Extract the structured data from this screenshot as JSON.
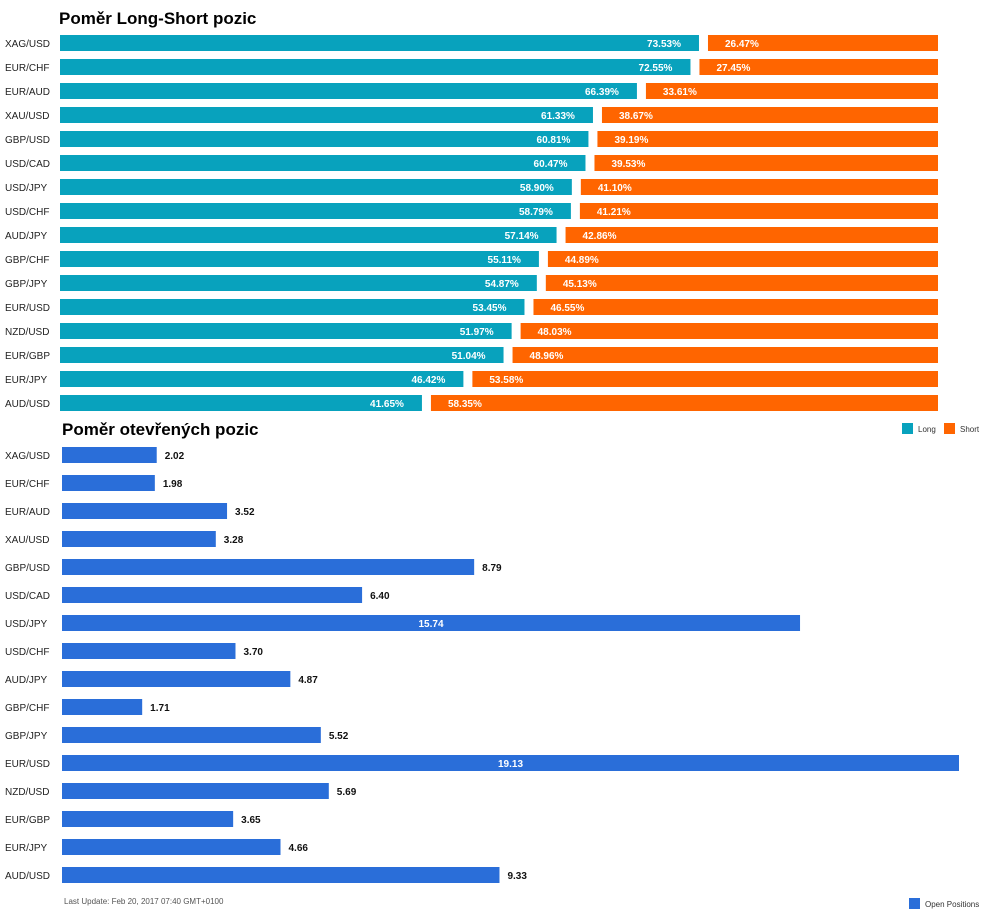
{
  "colors": {
    "long": "#08a2bd",
    "short": "#ff6500",
    "open": "#2a6ed9"
  },
  "footer": "Last Update: Feb 20, 2017 07:40 GMT+0100",
  "chart_data": [
    {
      "type": "bar",
      "orientation": "horizontal",
      "stacked": true,
      "title": "Poměr Long-Short pozic",
      "categories": [
        "XAG/USD",
        "EUR/CHF",
        "EUR/AUD",
        "XAU/USD",
        "GBP/USD",
        "USD/CAD",
        "USD/JPY",
        "USD/CHF",
        "AUD/JPY",
        "GBP/CHF",
        "GBP/JPY",
        "EUR/USD",
        "NZD/USD",
        "EUR/GBP",
        "EUR/JPY",
        "AUD/USD"
      ],
      "series": [
        {
          "name": "Long",
          "values": [
            73.53,
            72.55,
            66.39,
            61.33,
            60.81,
            60.47,
            58.9,
            58.79,
            57.14,
            55.11,
            54.87,
            53.45,
            51.97,
            51.04,
            46.42,
            41.65
          ]
        },
        {
          "name": "Short",
          "values": [
            26.47,
            27.45,
            33.61,
            38.67,
            39.19,
            39.53,
            41.1,
            41.21,
            42.86,
            44.89,
            45.13,
            46.55,
            48.03,
            48.96,
            53.58,
            58.35
          ]
        }
      ],
      "legend": "bottom-right",
      "xlim": [
        0,
        100
      ],
      "value_format": "%"
    },
    {
      "type": "bar",
      "orientation": "horizontal",
      "title": "Poměr otevřených pozic",
      "categories": [
        "XAG/USD",
        "EUR/CHF",
        "EUR/AUD",
        "XAU/USD",
        "GBP/USD",
        "USD/CAD",
        "USD/JPY",
        "USD/CHF",
        "AUD/JPY",
        "GBP/CHF",
        "GBP/JPY",
        "EUR/USD",
        "NZD/USD",
        "EUR/GBP",
        "EUR/JPY",
        "AUD/USD"
      ],
      "series": [
        {
          "name": "Open Positions",
          "values": [
            2.02,
            1.98,
            3.52,
            3.28,
            8.79,
            6.4,
            15.74,
            3.7,
            4.87,
            1.71,
            5.52,
            19.13,
            5.69,
            3.65,
            4.66,
            9.33
          ]
        }
      ],
      "legend": "bottom-right",
      "xlim": [
        0,
        19.13
      ]
    }
  ]
}
